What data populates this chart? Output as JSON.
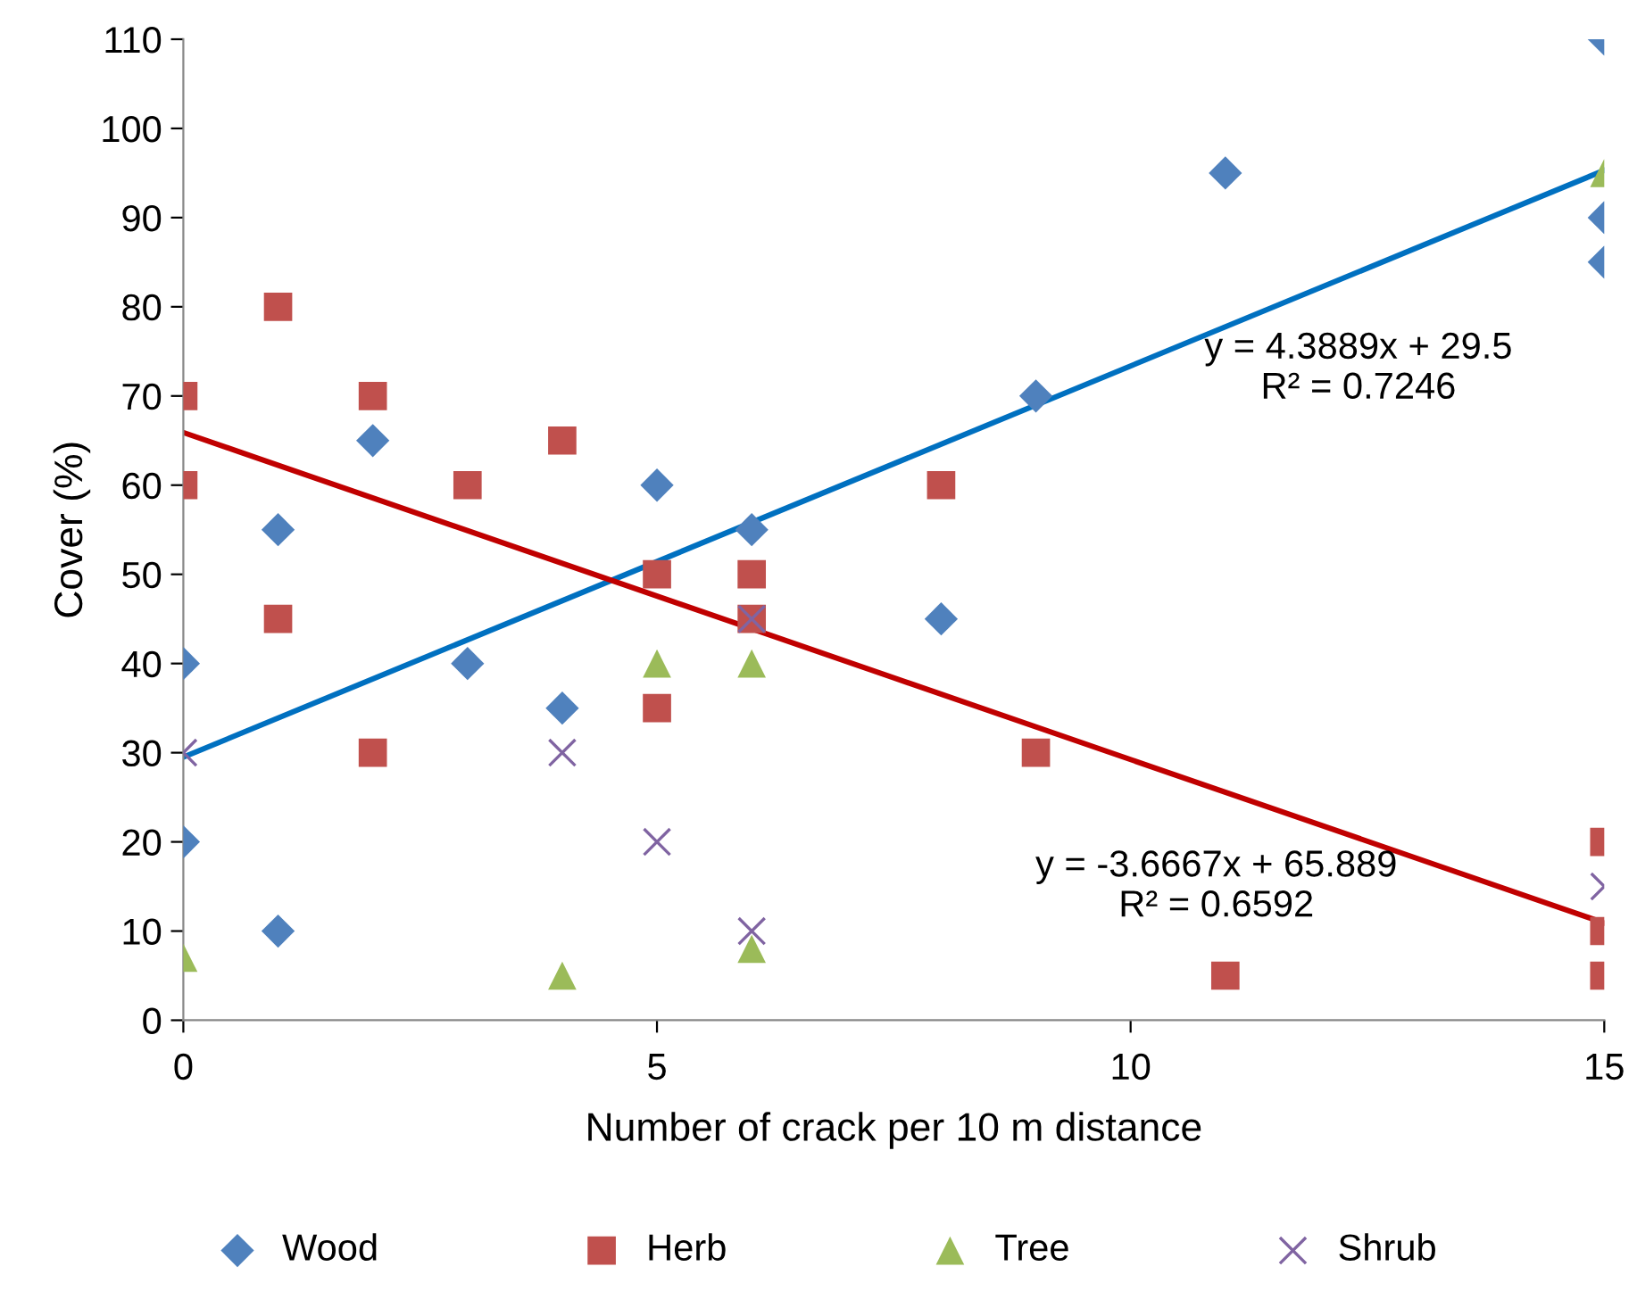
{
  "chart_data": {
    "type": "scatter",
    "xlabel": "Number of crack per 10 m distance",
    "ylabel": "Cover (%)",
    "xlim": [
      0,
      15
    ],
    "xticks": [
      0,
      5,
      10,
      15
    ],
    "ylim": [
      0,
      110
    ],
    "yticks": [
      0,
      10,
      20,
      30,
      40,
      50,
      60,
      70,
      80,
      90,
      100,
      110
    ],
    "grid": false,
    "legend": "bottom",
    "series": [
      {
        "name": "Wood",
        "color": "#4f81bd",
        "marker": "diamond",
        "x": [
          0,
          0,
          1,
          1,
          2,
          3,
          4,
          5,
          6,
          8,
          9,
          11,
          15,
          15,
          15
        ],
        "values": [
          40,
          20,
          55,
          10,
          65,
          40,
          35,
          60,
          55,
          45,
          70,
          95,
          110,
          90,
          85
        ]
      },
      {
        "name": "Herb",
        "color": "#c0504d",
        "marker": "square",
        "x": [
          0,
          0,
          1,
          1,
          2,
          2,
          3,
          4,
          5,
          5,
          6,
          6,
          8,
          9,
          11,
          15,
          15,
          15
        ],
        "values": [
          70,
          60,
          80,
          45,
          70,
          30,
          60,
          65,
          50,
          35,
          50,
          45,
          60,
          30,
          5,
          20,
          10,
          5
        ]
      },
      {
        "name": "Tree",
        "color": "#9bbb59",
        "marker": "triangle",
        "x": [
          0,
          4,
          5,
          6,
          6,
          15
        ],
        "values": [
          7,
          5,
          40,
          40,
          8,
          95
        ]
      },
      {
        "name": "Shrub",
        "color": "#8064a2",
        "marker": "cross",
        "x": [
          0,
          4,
          5,
          6,
          6,
          15
        ],
        "values": [
          30,
          30,
          20,
          45,
          10,
          15
        ]
      },
      {
        "type": "line",
        "color": "#0070c0",
        "marker": "none",
        "line_style": "solid",
        "x": [
          0,
          15
        ],
        "values": [
          29.5,
          95.3
        ]
      },
      {
        "type": "line",
        "color": "#c00000",
        "marker": "none",
        "line_style": "solid",
        "x": [
          0,
          15
        ],
        "values": [
          65.9,
          10.9
        ]
      }
    ],
    "annotations": [
      "y = 4.3889x + 29.5\nR² = 0.7246",
      "y = -3.6667x + 65.889\nR² = 0.6592"
    ]
  }
}
